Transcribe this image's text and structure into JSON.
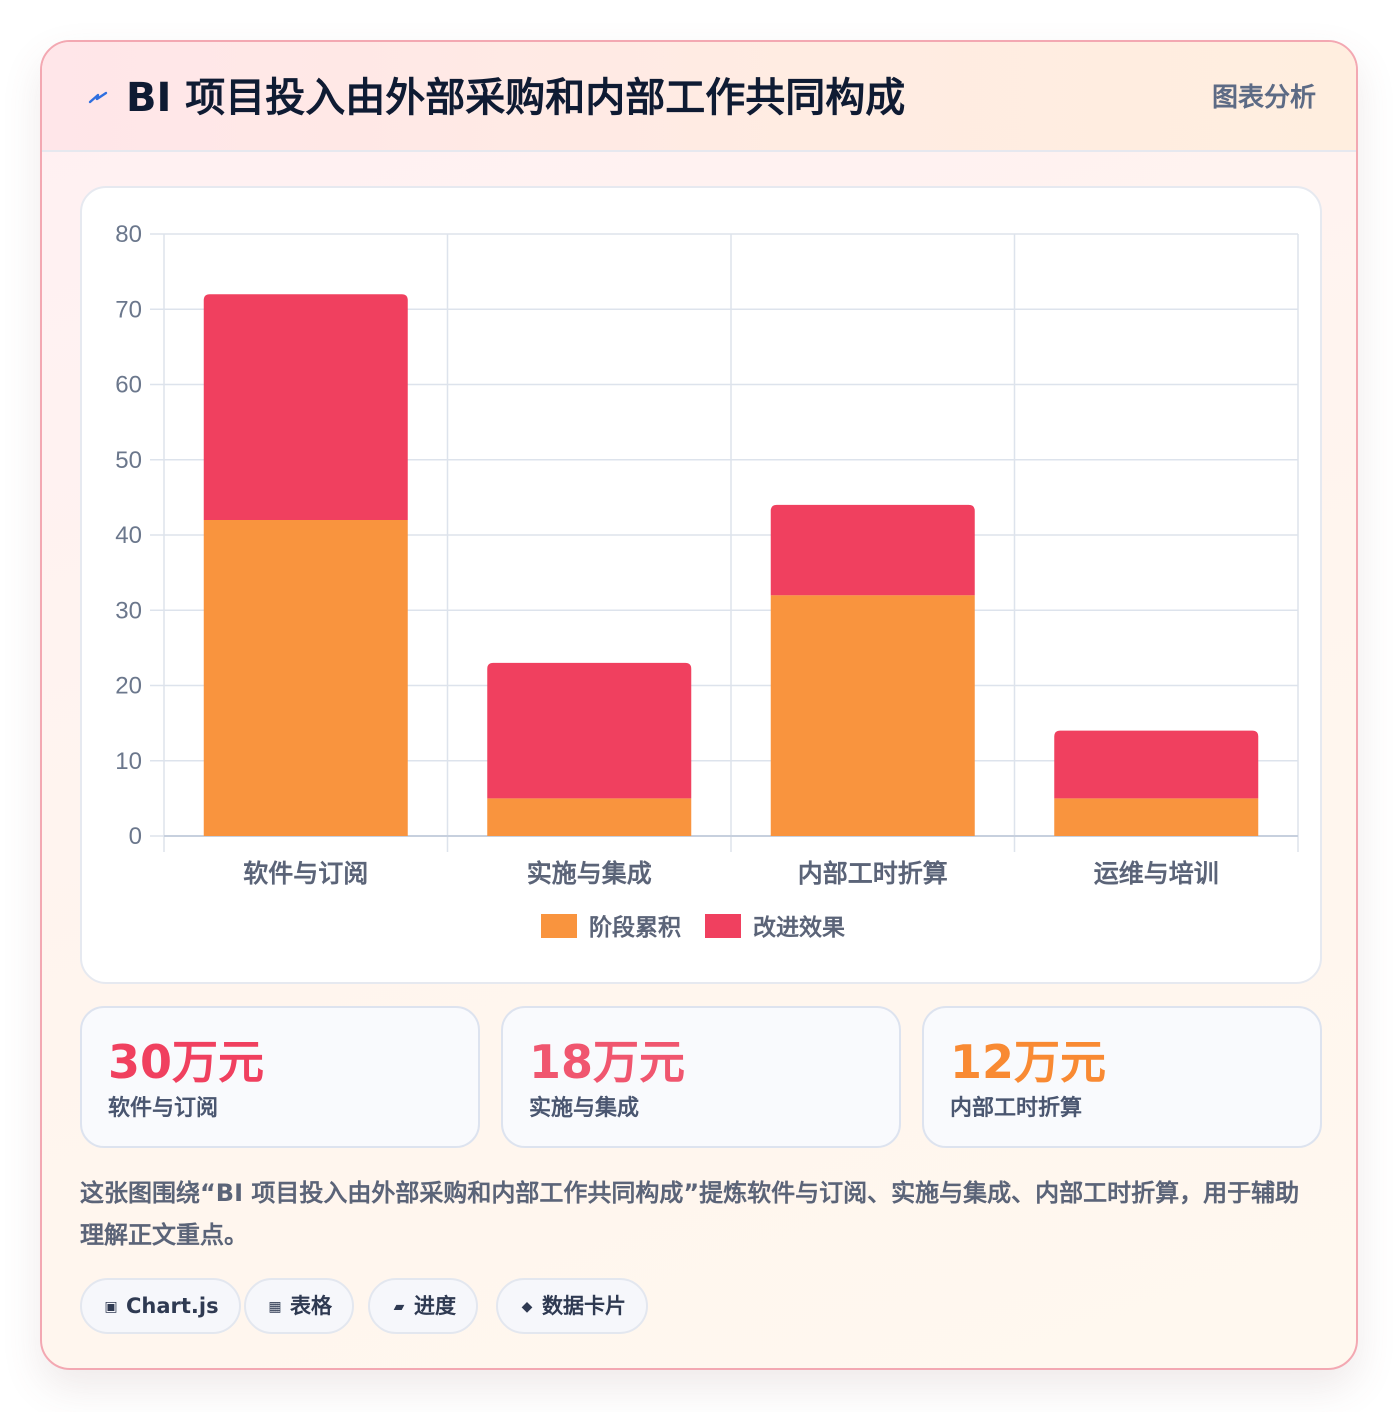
{
  "header": {
    "icon": "lightning-icon",
    "title": "BI 项目投入由外部采购和内部工作共同构成",
    "badge": "图表分析"
  },
  "colors": {
    "series1": "#f9943e",
    "series2": "#f0405f",
    "accent_red": "#f0405f",
    "accent_pink": "#f0566f",
    "accent_orange": "#f98a33"
  },
  "chart_data": {
    "type": "bar",
    "stacked": true,
    "categories": [
      "软件与订阅",
      "实施与集成",
      "内部工时折算",
      "运维与培训"
    ],
    "series": [
      {
        "name": "阶段累积",
        "values": [
          42,
          5,
          32,
          5
        ]
      },
      {
        "name": "改进效果",
        "values": [
          30,
          18,
          12,
          9
        ]
      }
    ],
    "ylim": [
      0,
      80
    ],
    "yticks": [
      0,
      10,
      20,
      30,
      40,
      50,
      60,
      70,
      80
    ],
    "grid": true,
    "legend": "bottom"
  },
  "stats": [
    {
      "value": "30万元",
      "label": "软件与订阅"
    },
    {
      "value": "18万元",
      "label": "实施与集成"
    },
    {
      "value": "12万元",
      "label": "内部工时折算"
    }
  ],
  "description": "这张图围绕“BI 项目投入由外部采购和内部工作共同构成”提炼软件与订阅、实施与集成、内部工时折算，用于辅助理解正文重点。",
  "tags": [
    {
      "icon": "chart-icon",
      "glyph": "▣",
      "label": "Chart.js"
    },
    {
      "icon": "table-icon",
      "glyph": "▦",
      "label": "表格"
    },
    {
      "icon": "progress-icon",
      "glyph": "▰",
      "label": "进度"
    },
    {
      "icon": "data-card-icon",
      "glyph": "◆",
      "label": "数据卡片"
    }
  ]
}
